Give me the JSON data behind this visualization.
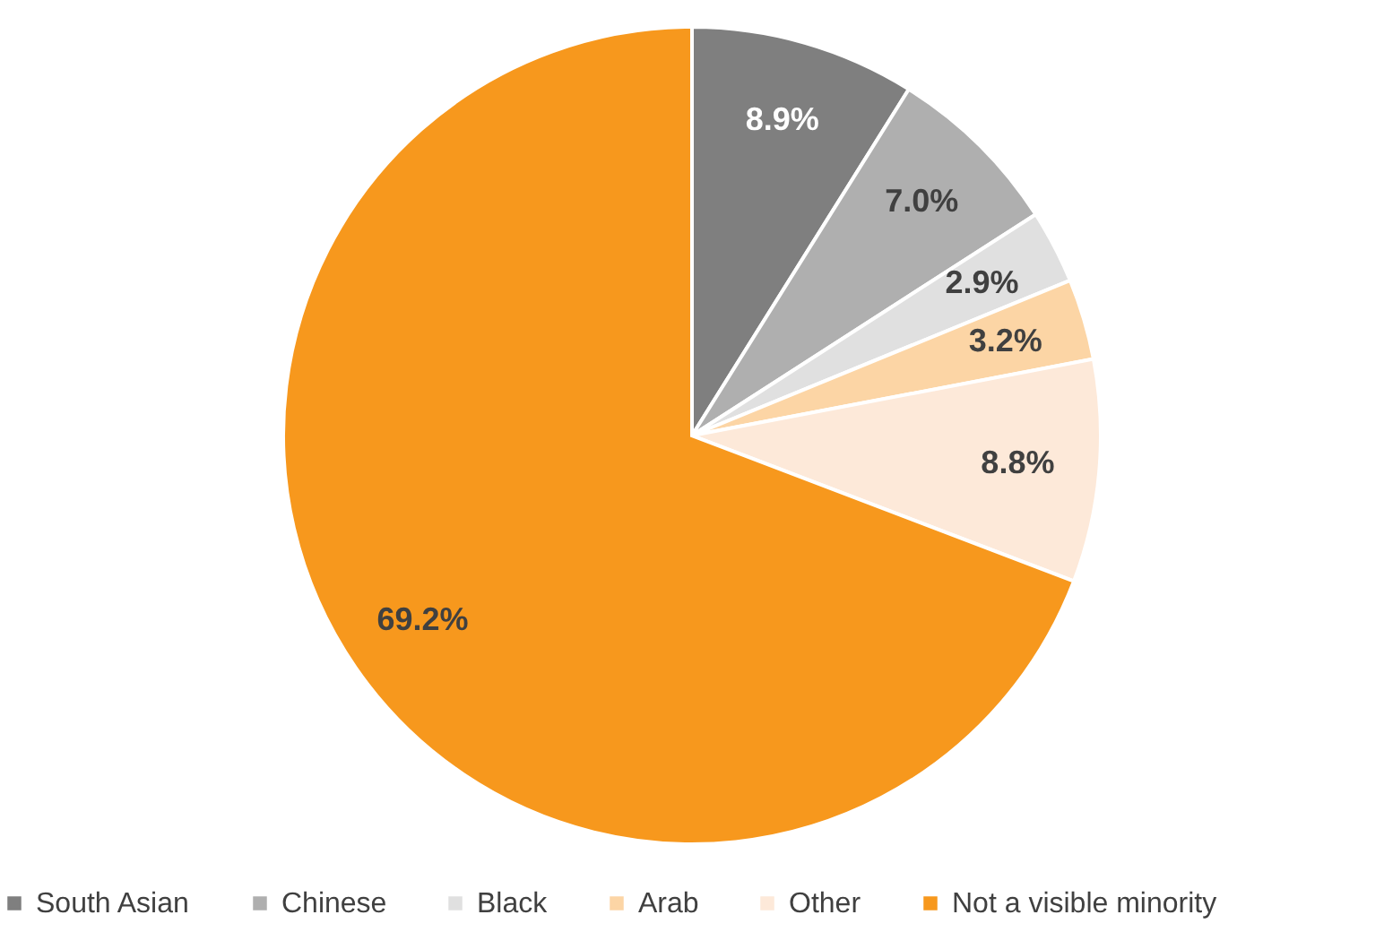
{
  "chart_data": {
    "type": "pie",
    "categories": [
      "South Asian",
      "Chinese",
      "Black",
      "Arab",
      "Other",
      "Not a visible minority"
    ],
    "values": [
      8.9,
      7.0,
      2.9,
      3.2,
      8.8,
      69.2
    ],
    "value_labels": [
      "8.9%",
      "7.0%",
      "2.9%",
      "3.2%",
      "8.8%",
      "69.2%"
    ],
    "colors": [
      "#7f7f7f",
      "#afafaf",
      "#e0e0e0",
      "#fcd5a5",
      "#fde9d9",
      "#f7981d"
    ],
    "legend": "bottom"
  }
}
